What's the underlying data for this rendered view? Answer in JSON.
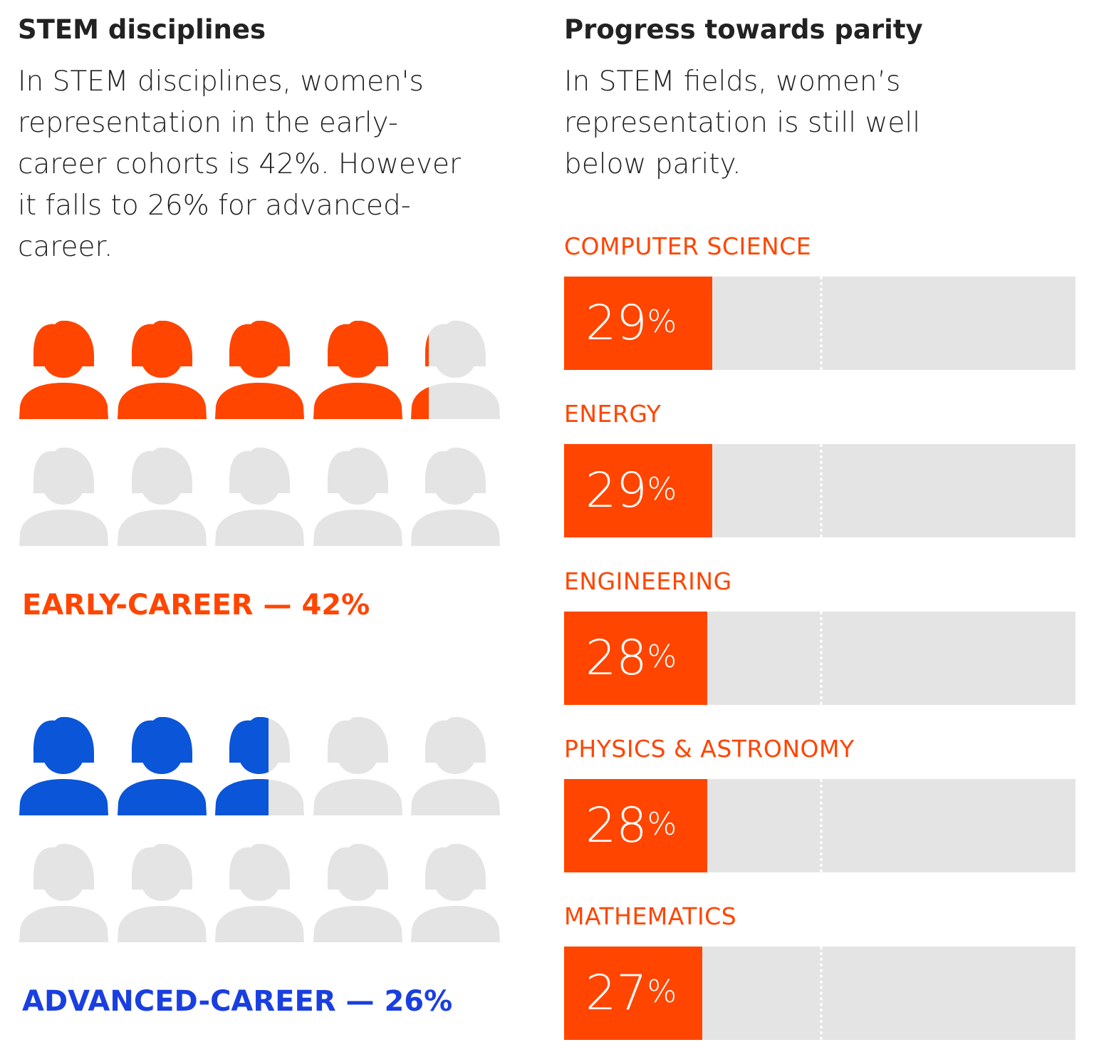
{
  "left": {
    "title": "STEM disciplines",
    "paragraph": "In STEM disciplines, women's representation in the early-career cohorts is 42%. However it falls to 26% for advanced-career.",
    "cohorts": [
      {
        "label": "EARLY-CAREER — 42%",
        "percent": 42,
        "color": "#ff4500"
      },
      {
        "label": "ADVANCED-CAREER — 26%",
        "percent": 26,
        "color": "#0a55d8",
        "label_color": "#1a3fe0"
      }
    ],
    "icons_per_cohort": 10,
    "empty_color": "#e4e4e4"
  },
  "right": {
    "title": "Progress towards parity",
    "paragraph": "In STEM fields, women’s representation is still well below parity."
  },
  "chart_data": [
    {
      "type": "pictogram",
      "title": "STEM disciplines",
      "categories": [
        "EARLY-CAREER",
        "ADVANCED-CAREER"
      ],
      "values": [
        42,
        26
      ],
      "unit": "%"
    },
    {
      "type": "bar",
      "orientation": "horizontal",
      "title": "Progress towards parity",
      "categories": [
        "COMPUTER SCIENCE",
        "ENERGY",
        "ENGINEERING",
        "PHYSICS & ASTRONOMY",
        "MATHEMATICS"
      ],
      "values": [
        29,
        29,
        28,
        28,
        27
      ],
      "labels": [
        "29",
        "29",
        "28",
        "28",
        "27"
      ],
      "unit": "%",
      "xlim": [
        0,
        100
      ],
      "parity_line": 50,
      "bar_color": "#ff4500",
      "track_color": "#e4e4e4"
    }
  ]
}
